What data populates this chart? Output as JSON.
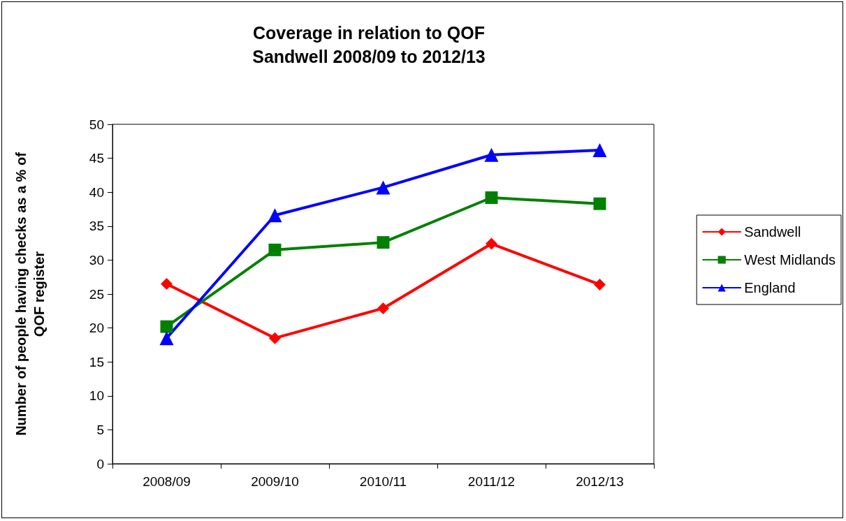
{
  "chart_data": {
    "type": "line",
    "title": "Coverage in relation to QOF\nSandwell 2008/09 to 2012/13",
    "ylabel": "Number of people having checks as a % of\nQOF register",
    "categories": [
      "2008/09",
      "2009/10",
      "2010/11",
      "2011/12",
      "2012/13"
    ],
    "series": [
      {
        "name": "Sandwell",
        "color": "#ff0000",
        "marker": "diamond",
        "values": [
          26.5,
          18.5,
          22.9,
          32.4,
          26.4
        ]
      },
      {
        "name": "West Midlands",
        "color": "#008000",
        "marker": "square",
        "values": [
          20.2,
          31.5,
          32.6,
          39.2,
          38.3
        ]
      },
      {
        "name": "England",
        "color": "#0000ff",
        "marker": "triangle",
        "values": [
          18.5,
          36.6,
          40.7,
          45.5,
          46.2
        ]
      }
    ],
    "ylim": [
      0,
      50
    ],
    "yticks": [
      0,
      5,
      10,
      15,
      20,
      25,
      30,
      35,
      40,
      45,
      50
    ],
    "grid": false,
    "legend": "right",
    "line_style": "solid"
  }
}
